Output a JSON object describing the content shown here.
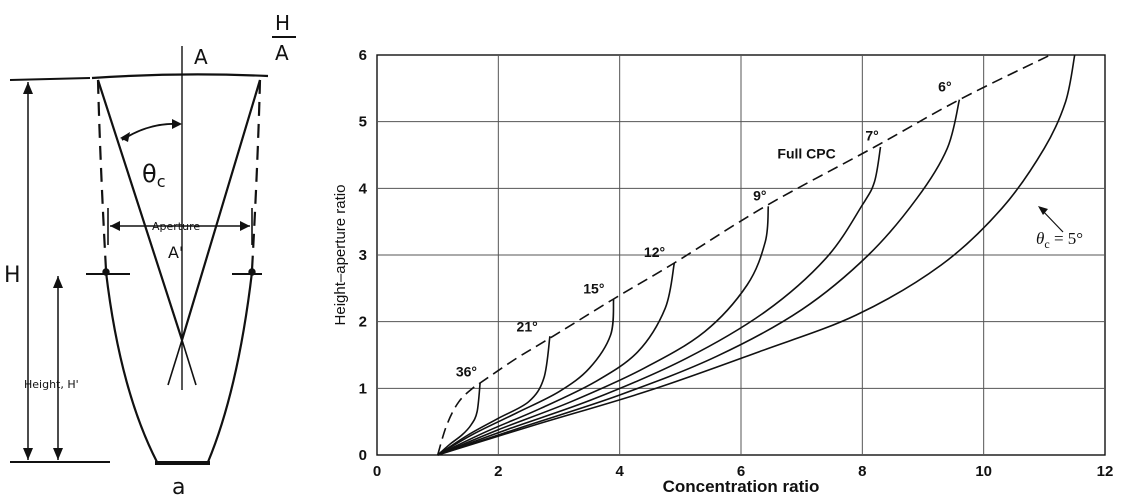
{
  "diagram": {
    "label_top": "A",
    "ratio_num": "H",
    "ratio_den": "A",
    "theta": "θ",
    "theta_sub": "c",
    "aperture": "Aperture",
    "aperture_prime": "A'",
    "height_left": "H",
    "truncated_height": "Height, H'",
    "bottom": "a"
  },
  "chart_data": {
    "type": "line",
    "xlabel": "Concentration ratio",
    "ylabel": "Height–aperture ratio",
    "xlim": [
      0,
      12
    ],
    "ylim": [
      0,
      6
    ],
    "xticks": [
      "0",
      "2",
      "4",
      "6",
      "8",
      "10",
      "12"
    ],
    "yticks": [
      "0",
      "1",
      "2",
      "3",
      "4",
      "5",
      "6"
    ],
    "grid": true,
    "full_cpc": {
      "name": "Full CPC",
      "style": "dashed",
      "points": [
        [
          1.0,
          0.0
        ],
        [
          1.15,
          0.45
        ],
        [
          1.35,
          0.8
        ],
        [
          1.6,
          1.02
        ],
        [
          1.7,
          1.08
        ],
        [
          2.3,
          1.45
        ],
        [
          2.9,
          1.78
        ],
        [
          3.9,
          2.34
        ],
        [
          4.9,
          2.88
        ],
        [
          6.4,
          3.73
        ],
        [
          8.2,
          4.62
        ],
        [
          9.6,
          5.33
        ],
        [
          11.1,
          6.0
        ]
      ]
    },
    "series": [
      {
        "name": "36°",
        "points": [
          [
            1.0,
            0.0
          ],
          [
            1.2,
            0.16
          ],
          [
            1.4,
            0.3
          ],
          [
            1.55,
            0.45
          ],
          [
            1.65,
            0.65
          ],
          [
            1.7,
            1.08
          ]
        ]
      },
      {
        "name": "21°",
        "points": [
          [
            1.0,
            0.0
          ],
          [
            1.5,
            0.3
          ],
          [
            2.0,
            0.55
          ],
          [
            2.5,
            0.8
          ],
          [
            2.75,
            1.15
          ],
          [
            2.85,
            1.78
          ]
        ]
      },
      {
        "name": "15°",
        "points": [
          [
            1.0,
            0.0
          ],
          [
            1.6,
            0.32
          ],
          [
            2.3,
            0.63
          ],
          [
            3.0,
            0.95
          ],
          [
            3.5,
            1.3
          ],
          [
            3.85,
            1.8
          ],
          [
            3.9,
            2.34
          ]
        ]
      },
      {
        "name": "12°",
        "points": [
          [
            1.0,
            0.0
          ],
          [
            1.8,
            0.35
          ],
          [
            2.7,
            0.7
          ],
          [
            3.6,
            1.1
          ],
          [
            4.3,
            1.55
          ],
          [
            4.75,
            2.2
          ],
          [
            4.9,
            2.88
          ]
        ]
      },
      {
        "name": "9°",
        "points": [
          [
            1.0,
            0.0
          ],
          [
            2.0,
            0.38
          ],
          [
            3.2,
            0.8
          ],
          [
            4.4,
            1.3
          ],
          [
            5.4,
            1.85
          ],
          [
            6.1,
            2.55
          ],
          [
            6.4,
            3.2
          ],
          [
            6.45,
            3.73
          ]
        ]
      },
      {
        "name": "7°",
        "points": [
          [
            1.0,
            0.0
          ],
          [
            2.2,
            0.4
          ],
          [
            3.6,
            0.85
          ],
          [
            5.1,
            1.45
          ],
          [
            6.4,
            2.15
          ],
          [
            7.4,
            2.95
          ],
          [
            8.0,
            3.75
          ],
          [
            8.2,
            4.1
          ],
          [
            8.3,
            4.62
          ]
        ]
      },
      {
        "name": "6°",
        "points": [
          [
            1.0,
            0.0
          ],
          [
            2.4,
            0.42
          ],
          [
            4.0,
            0.9
          ],
          [
            5.6,
            1.48
          ],
          [
            7.0,
            2.18
          ],
          [
            8.1,
            3.0
          ],
          [
            8.9,
            3.85
          ],
          [
            9.4,
            4.6
          ],
          [
            9.6,
            5.33
          ]
        ]
      },
      {
        "name": "θc = 5°",
        "points": [
          [
            1.0,
            0.0
          ],
          [
            2.6,
            0.45
          ],
          [
            4.5,
            0.97
          ],
          [
            6.3,
            1.55
          ],
          [
            7.9,
            2.1
          ],
          [
            9.3,
            2.85
          ],
          [
            10.3,
            3.7
          ],
          [
            11.0,
            4.6
          ],
          [
            11.35,
            5.3
          ],
          [
            11.5,
            6.0
          ]
        ]
      }
    ],
    "labels": [
      {
        "text": "36°",
        "x": 1.3,
        "y": 1.18
      },
      {
        "text": "21°",
        "x": 2.3,
        "y": 1.85
      },
      {
        "text": "15°",
        "x": 3.4,
        "y": 2.42
      },
      {
        "text": "12°",
        "x": 4.4,
        "y": 2.97
      },
      {
        "text": "9°",
        "x": 6.2,
        "y": 3.82
      },
      {
        "text": "7°",
        "x": 8.05,
        "y": 4.72
      },
      {
        "text": "6°",
        "x": 9.25,
        "y": 5.45
      },
      {
        "text": "Full CPC",
        "x": 6.6,
        "y": 4.45
      }
    ],
    "theta_label": {
      "prefix": "θ",
      "sub": "c",
      "suffix": " = 5°"
    }
  }
}
